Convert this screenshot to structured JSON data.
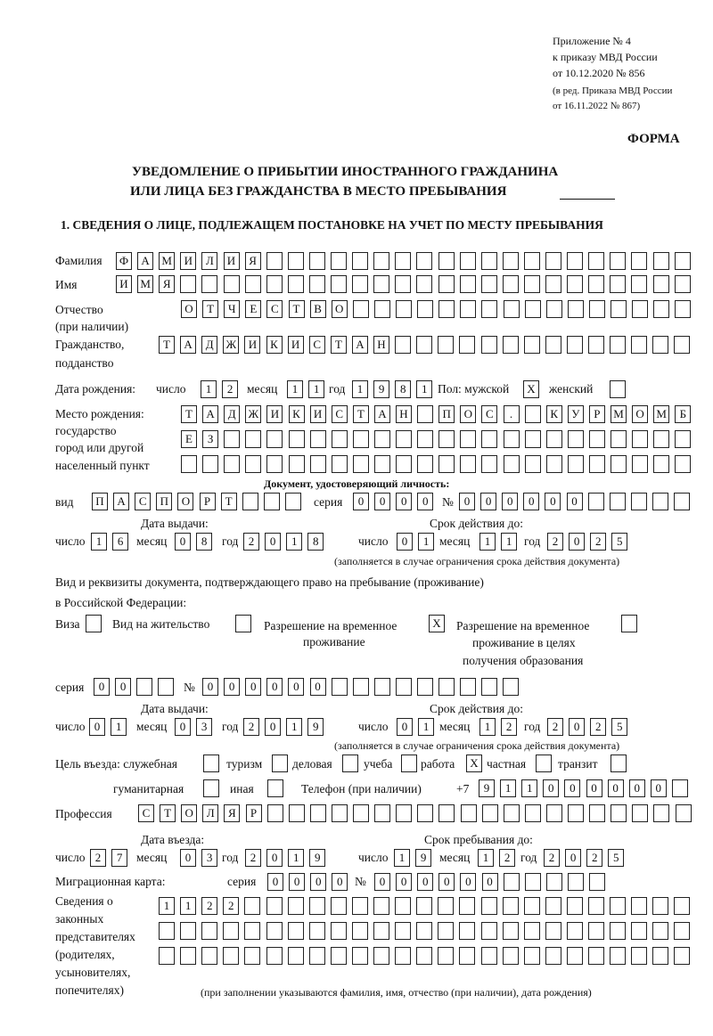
{
  "header": {
    "appendix": "Приложение № 4",
    "order": "к приказу МВД России",
    "order_date": "от 10.12.2020 № 856",
    "revision1": "(в ред. Приказа МВД России",
    "revision2": "от 16.11.2022 № 867)",
    "form_label": "ФОРМА",
    "title1": "УВЕДОМЛЕНИЕ О ПРИБЫТИИ ИНОСТРАННОГО ГРАЖДАНИНА",
    "title2": "ИЛИ ЛИЦА БЕЗ ГРАЖДАНСТВА В МЕСТО ПРЕБЫВАНИЯ",
    "section1": "1. СВЕДЕНИЯ О ЛИЦЕ, ПОДЛЕЖАЩЕМ ПОСТАНОВКЕ НА УЧЕТ ПО МЕСТУ ПРЕБЫВАНИЯ"
  },
  "labels": {
    "surname": "Фамилия",
    "name": "Имя",
    "patronymic": "Отчество",
    "patronymic_note": "(при наличии)",
    "citizenship1": "Гражданство,",
    "citizenship2": "подданство",
    "dob": "Дата рождения:",
    "day": "число",
    "month": "месяц",
    "year": "год",
    "sex_male": "Пол: мужской",
    "sex_female": "женский",
    "pob1": "Место рождения:",
    "pob2": "государство",
    "pob3": "город или другой",
    "pob4": "населенный пункт",
    "id_doc": "Документ, удостоверяющий личность:",
    "doc_type": "вид",
    "series": "серия",
    "number": "№",
    "issue_date": "Дата выдачи:",
    "valid_until": "Срок действия до:",
    "valid_note": "(заполняется в случае ограничения срока действия документа)",
    "stay_doc1": "Вид и реквизиты документа, подтверждающего право на пребывание (проживание)",
    "stay_doc2": "в Российской Федерации:",
    "visa": "Виза",
    "residence": "Вид на жительство",
    "trp1": "Разрешение на временное",
    "trp2": "проживание",
    "trpe1": "Разрешение на временное",
    "trpe2": "проживание в целях",
    "trpe3": "получения образования",
    "purpose": "Цель въезда: служебная",
    "tourism": "туризм",
    "business": "деловая",
    "study": "учеба",
    "work": "работа",
    "private": "частная",
    "transit": "транзит",
    "humanitarian": "гуманитарная",
    "other": "иная",
    "phone": "Телефон (при наличии)",
    "phone_prefix": "+7",
    "profession": "Профессия",
    "entry_date": "Дата въезда:",
    "stay_until": "Срок пребывания до:",
    "migration_card": "Миграционная карта:",
    "reps1": "Сведения о",
    "reps2": "законных",
    "reps3": "представителях",
    "reps4": "(родителях,",
    "reps5": "усыновителях,",
    "reps6": "попечителях)",
    "reps_note": "(при заполнении указываются фамилия, имя, отчество (при наличии), дата рождения)"
  },
  "fields": {
    "surname": [
      "Ф",
      "А",
      "М",
      "И",
      "Л",
      "И",
      "Я",
      "",
      "",
      "",
      "",
      "",
      "",
      "",
      "",
      "",
      "",
      "",
      "",
      "",
      "",
      "",
      "",
      "",
      "",
      "",
      ""
    ],
    "name": [
      "И",
      "М",
      "Я",
      "",
      "",
      "",
      "",
      "",
      "",
      "",
      "",
      "",
      "",
      "",
      "",
      "",
      "",
      "",
      "",
      "",
      "",
      "",
      "",
      "",
      "",
      "",
      ""
    ],
    "patronymic": [
      "О",
      "Т",
      "Ч",
      "Е",
      "С",
      "Т",
      "В",
      "О",
      "",
      "",
      "",
      "",
      "",
      "",
      "",
      "",
      "",
      "",
      "",
      "",
      "",
      "",
      "",
      ""
    ],
    "citizenship": [
      "Т",
      "А",
      "Д",
      "Ж",
      "И",
      "К",
      "И",
      "С",
      "Т",
      "А",
      "Н",
      "",
      "",
      "",
      "",
      "",
      "",
      "",
      "",
      "",
      "",
      "",
      "",
      "",
      ""
    ],
    "dob_day": [
      "1",
      "2"
    ],
    "dob_month": [
      "1",
      "1"
    ],
    "dob_year": [
      "1",
      "9",
      "8",
      "1"
    ],
    "sex_male": [
      "X"
    ],
    "sex_female": [
      ""
    ],
    "pob_row1": [
      "Т",
      "А",
      "Д",
      "Ж",
      "И",
      "К",
      "И",
      "С",
      "Т",
      "А",
      "Н",
      "",
      "П",
      "О",
      "С",
      ".",
      "",
      "К",
      "У",
      "Р",
      "М",
      "О",
      "М",
      "Б"
    ],
    "pob_row2": [
      "Е",
      "З",
      "",
      "",
      "",
      "",
      "",
      "",
      "",
      "",
      "",
      "",
      "",
      "",
      "",
      "",
      "",
      "",
      "",
      "",
      "",
      "",
      "",
      ""
    ],
    "pob_row3": [
      "",
      "",
      "",
      "",
      "",
      "",
      "",
      "",
      "",
      "",
      "",
      "",
      "",
      "",
      "",
      "",
      "",
      "",
      "",
      "",
      "",
      "",
      "",
      ""
    ],
    "doc_type": [
      "П",
      "А",
      "С",
      "П",
      "О",
      "Р",
      "Т",
      "",
      "",
      ""
    ],
    "doc_series": [
      "0",
      "0",
      "0",
      "0"
    ],
    "doc_number": [
      "0",
      "0",
      "0",
      "0",
      "0",
      "0",
      "",
      "",
      "",
      "",
      ""
    ],
    "doc_issue_day": [
      "1",
      "6"
    ],
    "doc_issue_month": [
      "0",
      "8"
    ],
    "doc_issue_year": [
      "2",
      "0",
      "1",
      "8"
    ],
    "doc_valid_day": [
      "0",
      "1"
    ],
    "doc_valid_month": [
      "1",
      "1"
    ],
    "doc_valid_year": [
      "2",
      "0",
      "2",
      "5"
    ],
    "visa": [
      ""
    ],
    "residence": [
      ""
    ],
    "trp": [
      "X"
    ],
    "trpe": [
      ""
    ],
    "stay_series": [
      "0",
      "0",
      "",
      ""
    ],
    "stay_number": [
      "0",
      "0",
      "0",
      "0",
      "0",
      "0",
      "",
      "",
      "",
      "",
      "",
      "",
      "",
      "",
      ""
    ],
    "stay_issue_day": [
      "0",
      "1"
    ],
    "stay_issue_month": [
      "0",
      "3"
    ],
    "stay_issue_year": [
      "2",
      "0",
      "1",
      "9"
    ],
    "stay_valid_day": [
      "0",
      "1"
    ],
    "stay_valid_month": [
      "1",
      "2"
    ],
    "stay_valid_year": [
      "2",
      "0",
      "2",
      "5"
    ],
    "p_service": [
      ""
    ],
    "p_tourism": [
      ""
    ],
    "p_business": [
      ""
    ],
    "p_study": [
      ""
    ],
    "p_work": [
      "X"
    ],
    "p_private": [
      ""
    ],
    "p_transit": [
      ""
    ],
    "p_humanitarian": [
      ""
    ],
    "p_other": [
      ""
    ],
    "phone": [
      "9",
      "1",
      "1",
      "0",
      "0",
      "0",
      "0",
      "0",
      "0",
      ""
    ],
    "profession": [
      "С",
      "Т",
      "О",
      "Л",
      "Я",
      "Р",
      "",
      "",
      "",
      "",
      "",
      "",
      "",
      "",
      "",
      "",
      "",
      "",
      "",
      "",
      "",
      "",
      "",
      "",
      "",
      ""
    ],
    "entry_day": [
      "2",
      "7"
    ],
    "entry_month": [
      "0",
      "3"
    ],
    "entry_year": [
      "2",
      "0",
      "1",
      "9"
    ],
    "until_day": [
      "1",
      "9"
    ],
    "until_month": [
      "1",
      "2"
    ],
    "until_year": [
      "2",
      "0",
      "2",
      "5"
    ],
    "mc_series": [
      "0",
      "0",
      "0",
      "0"
    ],
    "mc_number": [
      "0",
      "0",
      "0",
      "0",
      "0",
      "0",
      "",
      "",
      "",
      "",
      ""
    ],
    "reps_row1": [
      "1",
      "1",
      "2",
      "2",
      "",
      "",
      "",
      "",
      "",
      "",
      "",
      "",
      "",
      "",
      "",
      "",
      "",
      "",
      "",
      "",
      "",
      "",
      "",
      "",
      ""
    ],
    "reps_row2": [
      "",
      "",
      "",
      "",
      "",
      "",
      "",
      "",
      "",
      "",
      "",
      "",
      "",
      "",
      "",
      "",
      "",
      "",
      "",
      "",
      "",
      "",
      "",
      "",
      ""
    ],
    "reps_row3": [
      "",
      "",
      "",
      "",
      "",
      "",
      "",
      "",
      "",
      "",
      "",
      "",
      "",
      "",
      "",
      "",
      "",
      "",
      "",
      "",
      "",
      "",
      "",
      "",
      ""
    ]
  }
}
